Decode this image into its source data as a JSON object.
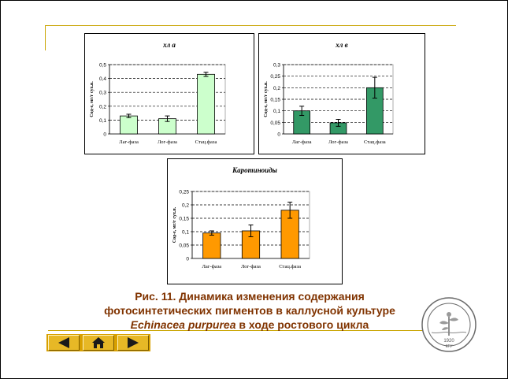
{
  "slide": {
    "caption_line1": "Рис. 11.   Динамика изменения содержания",
    "caption_line2": "фотосинтетических пигментов в каллусной культуре",
    "caption_species": "Echinacea purpurea",
    "caption_line3_rest": " в ходе ростового цикла"
  },
  "navigation": {
    "prev_icon": "triangle-left-icon",
    "home_icon": "house-icon",
    "next_icon": "triangle-right-icon"
  },
  "seal": {
    "text": "Кафедра физиологии и биохимии растений КГУ",
    "year": "1920",
    "initials": "КГУ"
  },
  "colors": {
    "accent_rule": "#c9a400",
    "caption": "#803300",
    "nav_bar": "#d8a000",
    "bar_chl_a": "#ccffcc",
    "bar_chl_b": "#339966",
    "bar_carotenoids": "#ff9900"
  },
  "chart_data": [
    {
      "type": "bar",
      "title": "хл а",
      "ylabel": "Сод-е, мг/г сух.в.",
      "categories": [
        "Лаг-фаза",
        "Лог-фаза",
        "Стац.фаза"
      ],
      "values": [
        0.13,
        0.11,
        0.43
      ],
      "errors": [
        0.012,
        0.02,
        0.015
      ],
      "ylim": [
        0,
        0.5
      ],
      "yticks": [
        "0",
        "0,1",
        "0,2",
        "0,3",
        "0,4",
        "0,5"
      ],
      "grid": true
    },
    {
      "type": "bar",
      "title": "хл в",
      "ylabel": "Сод-е, мг/г сух.в.",
      "categories": [
        "Лаг-фаза",
        "Лог-фаза",
        "Стац.фаза"
      ],
      "values": [
        0.1,
        0.048,
        0.2
      ],
      "errors": [
        0.02,
        0.015,
        0.045
      ],
      "ylim": [
        0,
        0.3
      ],
      "yticks": [
        "0",
        "0,05",
        "0,1",
        "0,15",
        "0,2",
        "0,25",
        "0,3"
      ],
      "grid": true
    },
    {
      "type": "bar",
      "title": "Каротиноиды",
      "ylabel": "Сод-е, мг/г сух.в.",
      "categories": [
        "Лаг-фаза",
        "Лог-фаза",
        "Стац.фаза"
      ],
      "values": [
        0.095,
        0.103,
        0.18
      ],
      "errors": [
        0.008,
        0.022,
        0.03
      ],
      "ylim": [
        0,
        0.25
      ],
      "yticks": [
        "0",
        "0,05",
        "0,1",
        "0,15",
        "0,2",
        "0,25"
      ],
      "grid": true
    }
  ]
}
